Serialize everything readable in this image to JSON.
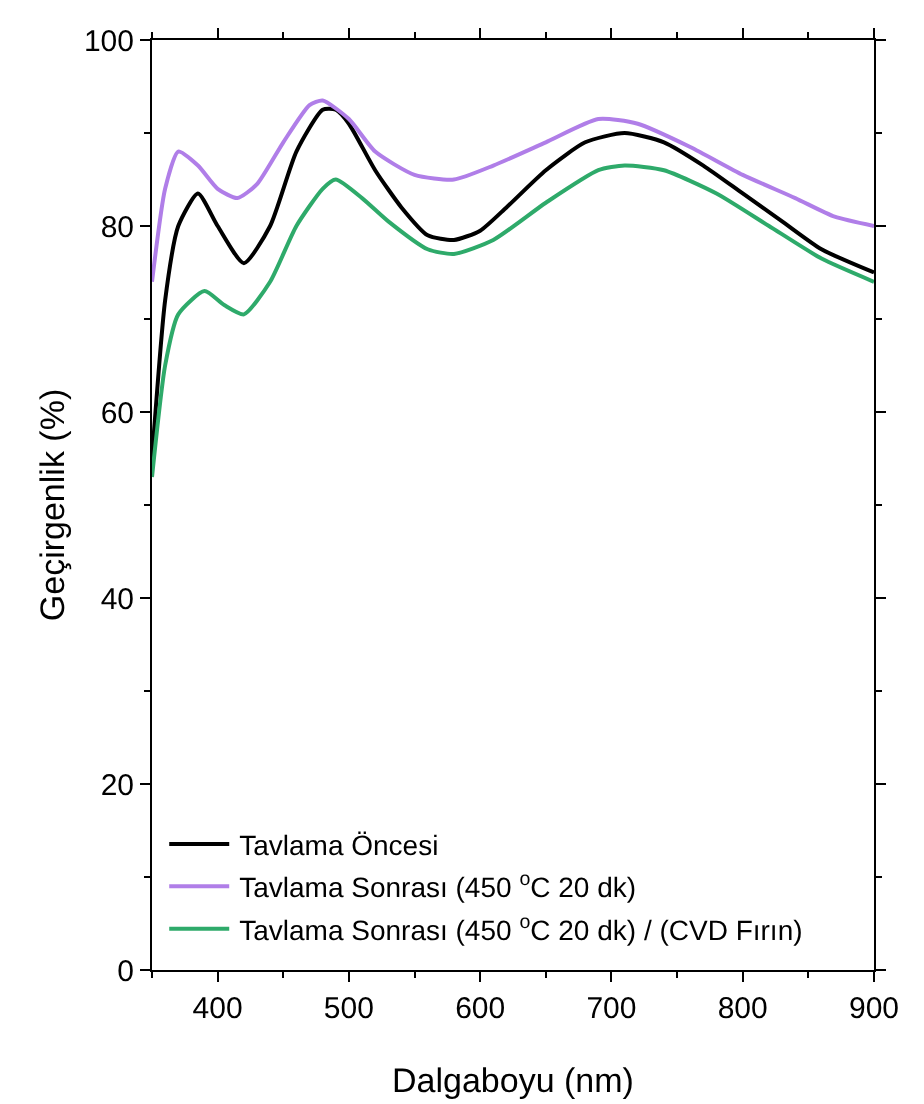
{
  "chart_data": {
    "type": "line",
    "xlabel": "Dalgaboyu (nm)",
    "ylabel": "Geçirgenlik (%)",
    "xlim": [
      350,
      900
    ],
    "ylim": [
      0,
      100
    ],
    "xticks": [
      400,
      500,
      600,
      700,
      800,
      900
    ],
    "yticks": [
      0,
      20,
      40,
      60,
      80,
      100
    ],
    "grid": false,
    "legend": "bottom left",
    "line_style": "solid",
    "marker": "none",
    "x": [
      350,
      360,
      370,
      385,
      400,
      420,
      440,
      460,
      480,
      490,
      500,
      520,
      540,
      560,
      580,
      600,
      620,
      650,
      680,
      710,
      740,
      770,
      800,
      830,
      860,
      900
    ],
    "series": [
      {
        "name": "Tavlama Öncesi",
        "color": "#000000",
        "values": [
          55,
          72,
          80,
          83.5,
          80,
          76,
          80,
          88,
          92.5,
          92.5,
          91,
          86,
          82,
          79,
          78.5,
          79.5,
          82,
          86,
          89,
          90,
          89,
          86.5,
          83.5,
          80.5,
          77.5,
          75
        ]
      },
      {
        "name": "Tavlama Sonrası (450 $^{o}$C 20 dk)",
        "color": "#b07ee8",
        "x": [
          350,
          360,
          370,
          385,
          400,
          415,
          430,
          450,
          470,
          480,
          500,
          520,
          550,
          580,
          610,
          650,
          690,
          720,
          760,
          800,
          840,
          870,
          900
        ],
        "values": [
          74,
          84,
          88,
          86.5,
          84,
          83,
          84.5,
          89,
          93,
          93.5,
          91.5,
          88,
          85.5,
          85,
          86.5,
          89,
          91.5,
          91,
          88.5,
          85.5,
          83,
          81,
          80
        ]
      },
      {
        "name": "Tavlama Sonrası (450 $^{o}$C 20 dk) / (CVD Fırın)",
        "color": "#2eaa6a",
        "x": [
          350,
          360,
          370,
          390,
          405,
          420,
          440,
          460,
          480,
          490,
          510,
          530,
          560,
          580,
          610,
          650,
          690,
          710,
          740,
          780,
          820,
          860,
          900
        ],
        "values": [
          53,
          65,
          70.5,
          73,
          71.5,
          70.5,
          74,
          80,
          84,
          85,
          83,
          80.5,
          77.5,
          77,
          78.5,
          82.5,
          86,
          86.5,
          86,
          83.5,
          80,
          76.5,
          74
        ]
      }
    ]
  }
}
